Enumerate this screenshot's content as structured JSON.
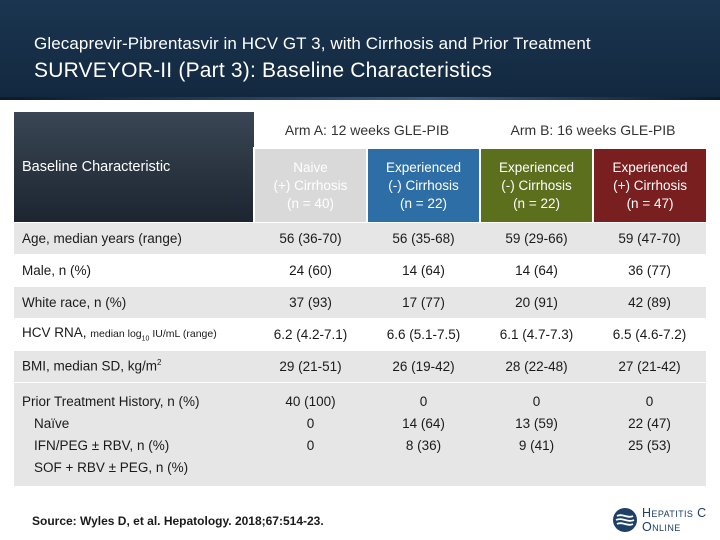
{
  "header": {
    "line1": "Glecaprevir-Pibrentasvir in HCV GT 3, with Cirrhosis and Prior Treatment",
    "line2": "SURVEYOR-II (Part 3): Baseline Characteristics"
  },
  "table": {
    "label_header": "Baseline Characteristic",
    "arms": [
      "Arm A: 12 weeks GLE-PIB",
      "Arm B: 16 weeks GLE-PIB"
    ],
    "groups": [
      {
        "l1": "Naive",
        "l2": "(+) Cirrhosis",
        "l3": "(n = 40)"
      },
      {
        "l1": "Experienced",
        "l2": "(-) Cirrhosis",
        "l3": "(n = 22)"
      },
      {
        "l1": "Experienced",
        "l2": "(-) Cirrhosis",
        "l3": "(n = 22)"
      },
      {
        "l1": "Experienced",
        "l2": "(+) Cirrhosis",
        "l3": "(n = 47)"
      }
    ],
    "rows": [
      {
        "label": "Age, median years (range)",
        "values": [
          "56 (36-70)",
          "56 (35-68)",
          "59 (29-66)",
          "59 (47-70)"
        ]
      },
      {
        "label": "Male, n (%)",
        "values": [
          "24 (60)",
          "14 (64)",
          "14 (64)",
          "36 (77)"
        ]
      },
      {
        "label": "White race, n (%)",
        "values": [
          "37 (93)",
          "17 (77)",
          "20 (91)",
          "42 (89)"
        ]
      },
      {
        "label_main": "HCV RNA, ",
        "label_small_a": "median log",
        "label_sub": "10",
        "label_small_b": " IU/mL (range)",
        "values": [
          "6.2 (4.2-7.1)",
          "6.6 (5.1-7.5)",
          "6.1 (4.7-7.3)",
          "6.5 (4.6-7.2)"
        ]
      },
      {
        "label_main": "BMI, median SD, kg/m",
        "label_sup": "2",
        "values": [
          "29 (21-51)",
          "26 (19-42)",
          "28 (22-48)",
          "27 (21-42)"
        ]
      }
    ],
    "prior": {
      "title": "Prior Treatment History, n (%)",
      "items": [
        "Naïve",
        "IFN/PEG ± RBV, n (%)",
        "SOF + RBV ± PEG, n (%)"
      ],
      "values": [
        [
          "40 (100)",
          "0",
          "0"
        ],
        [
          "0",
          "14 (64)",
          "8 (36)"
        ],
        [
          "0",
          "13 (59)",
          "9 (41)"
        ],
        [
          "0",
          "22 (47)",
          "25 (53)"
        ]
      ]
    }
  },
  "source": "Source: Wyles D, et al.  Hepatology. 2018;67:514-23.",
  "logo": {
    "line1": "Hepatitis C",
    "line2": "Online"
  }
}
